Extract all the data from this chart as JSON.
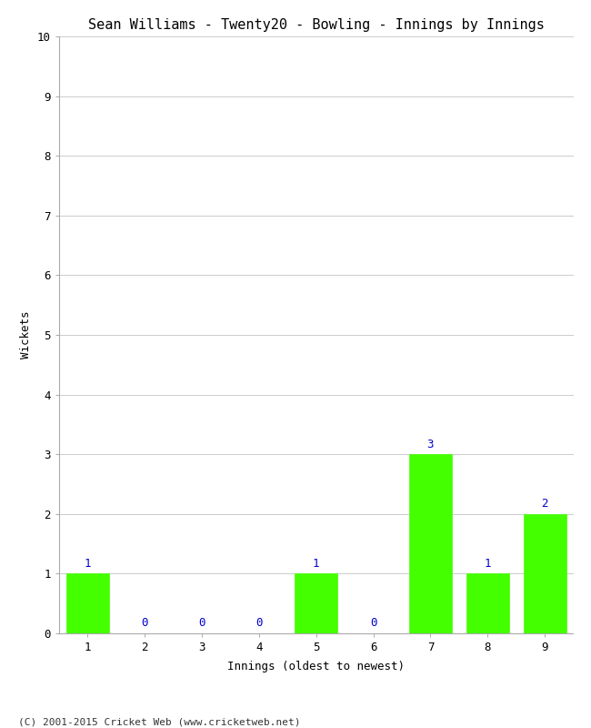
{
  "title": "Sean Williams - Twenty20 - Bowling - Innings by Innings",
  "xlabel": "Innings (oldest to newest)",
  "ylabel": "Wickets",
  "categories": [
    "1",
    "2",
    "3",
    "4",
    "5",
    "6",
    "7",
    "8",
    "9"
  ],
  "values": [
    1,
    0,
    0,
    0,
    1,
    0,
    3,
    1,
    2
  ],
  "bar_color": "#44ff00",
  "bar_edge_color": "#44ff00",
  "label_color": "#0000cc",
  "ylim": [
    0,
    10
  ],
  "yticks": [
    0,
    1,
    2,
    3,
    4,
    5,
    6,
    7,
    8,
    9,
    10
  ],
  "background_color": "#ffffff",
  "grid_color": "#cccccc",
  "footer": "(C) 2001-2015 Cricket Web (www.cricketweb.net)",
  "title_fontsize": 11,
  "axis_label_fontsize": 9,
  "tick_fontsize": 9,
  "annotation_fontsize": 9,
  "footer_fontsize": 8
}
